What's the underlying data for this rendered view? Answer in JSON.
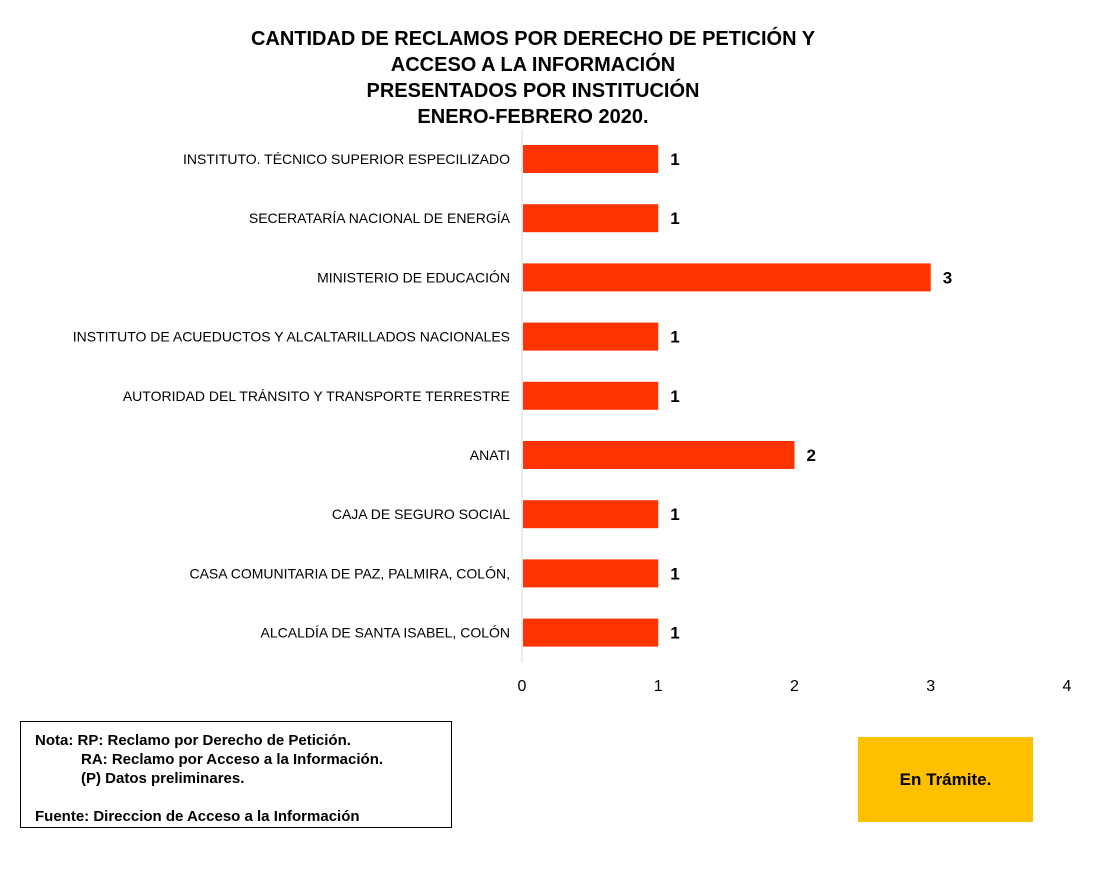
{
  "chart_data": {
    "type": "bar",
    "orientation": "horizontal",
    "title_lines": [
      "CANTIDAD DE RECLAMOS POR DERECHO DE PETICIÓN Y",
      "ACCESO A LA INFORMACIÓN",
      "PRESENTADOS POR INSTITUCIÓN",
      "ENERO-FEBRERO 2020."
    ],
    "categories": [
      "INSTITUTO. TÉCNICO SUPERIOR  ESPECILIZADO",
      "SECERATARÍA NACIONAL DE ENERGÍA",
      "MINISTERIO DE EDUCACIÓN",
      "INSTITUTO DE ACUEDUCTOS Y ALCALTARILLADOS NACIONALES",
      "AUTORIDAD DEL TRÁNSITO Y TRANSPORTE TERRESTRE",
      "ANATI",
      "CAJA DE SEGURO SOCIAL",
      "CASA COMUNITARIA DE PAZ, PALMIRA, COLÓN,",
      "ALCALDÍA DE SANTA ISABEL, COLÓN"
    ],
    "values": [
      1,
      1,
      3,
      1,
      1,
      2,
      1,
      1,
      1
    ],
    "xlim": [
      0,
      4
    ],
    "xticks": [
      "0",
      "1",
      "2",
      "3",
      "4"
    ],
    "grid": false,
    "bar_color": "#FF3300"
  },
  "note": {
    "line1": "Nota: RP: Reclamo por Derecho de Petición.",
    "line2": "RA: Reclamo por Acceso a la Información.",
    "line3": "(P) Datos preliminares.",
    "source": "Fuente: Direccion de Acceso a la Información"
  },
  "status": {
    "label": "En Trámite.",
    "color": "#FFC000"
  }
}
